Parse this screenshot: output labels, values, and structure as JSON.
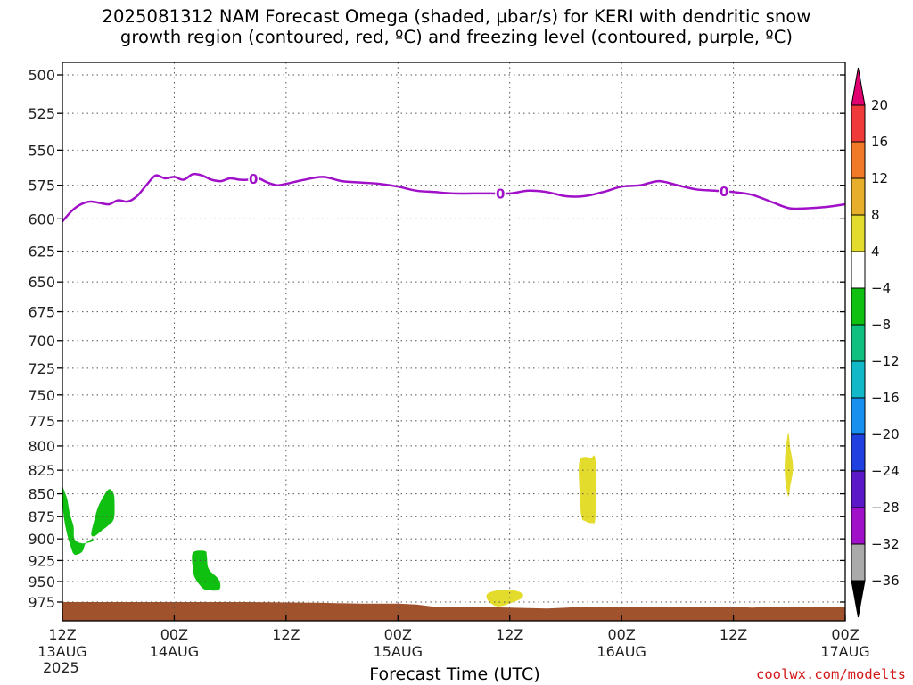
{
  "title": {
    "line1": "2025081312 NAM Forecast Omega (shaded, μbar/s) for KERI with dendritic snow",
    "line2": "growth region (contoured, red, ºC) and freezing level (contoured, purple, ºC)"
  },
  "credit": "coolwx.com/modelts",
  "chart_data": {
    "type": "time-height",
    "xlabel": "Forecast Time (UTC)",
    "x_ticks": [
      {
        "hour": 0,
        "label": "12Z",
        "sub": [
          "13AUG",
          "2025"
        ]
      },
      {
        "hour": 12,
        "label": "00Z",
        "sub": [
          "14AUG"
        ]
      },
      {
        "hour": 24,
        "label": "12Z",
        "sub": []
      },
      {
        "hour": 36,
        "label": "00Z",
        "sub": [
          "15AUG"
        ]
      },
      {
        "hour": 48,
        "label": "12Z",
        "sub": []
      },
      {
        "hour": 60,
        "label": "00Z",
        "sub": [
          "16AUG"
        ]
      },
      {
        "hour": 72,
        "label": "12Z",
        "sub": []
      },
      {
        "hour": 84,
        "label": "00Z",
        "sub": [
          "17AUG"
        ]
      }
    ],
    "xlim_hours": [
      0,
      84
    ],
    "y_ticks": [
      "500",
      "525",
      "550",
      "575",
      "600",
      "625",
      "650",
      "675",
      "700",
      "725",
      "750",
      "775",
      "800",
      "825",
      "850",
      "875",
      "900",
      "925",
      "950",
      "975"
    ],
    "ylim_mb": [
      1000,
      490
    ],
    "y_scale": "log-pressure",
    "grid": true,
    "freezing_level": {
      "label": "0",
      "color": "#a010c8",
      "hour": [
        0,
        1,
        2,
        3,
        4,
        5,
        6,
        7,
        8,
        9,
        10,
        11,
        12,
        13,
        14,
        15,
        16,
        17,
        18,
        19,
        20,
        21,
        22,
        23,
        24,
        26,
        28,
        30,
        32,
        34,
        36,
        38,
        40,
        42,
        44,
        46,
        48,
        50,
        52,
        54,
        56,
        58,
        60,
        62,
        64,
        66,
        68,
        70,
        72,
        74,
        76,
        78,
        80,
        82,
        84
      ],
      "pressure": [
        602,
        594,
        589,
        587,
        588,
        589,
        586,
        587,
        583,
        575,
        568,
        570,
        569,
        571,
        567,
        568,
        571,
        572,
        570,
        571,
        571,
        570,
        573,
        575,
        574,
        571,
        569,
        572,
        573,
        574,
        576,
        579,
        580,
        581,
        581,
        581,
        581,
        579,
        580,
        583,
        583,
        580,
        576,
        575,
        572,
        575,
        578,
        579,
        580,
        582,
        587,
        592,
        592,
        591,
        589
      ]
    },
    "freezing_level_labels_hour": [
      20.5,
      47,
      71
    ],
    "omega_shaded": [
      {
        "value_range": "-8 to -4",
        "color": "#10c010",
        "hour": [
          0,
          0,
          0.5,
          0.8,
          1.2,
          1.3,
          2.1,
          3.2,
          3.2,
          2.5,
          2.1,
          1.3,
          0.9,
          0.4,
          0.1,
          0
        ],
        "pressure": [
          822,
          840,
          855,
          872,
          886,
          900,
          905,
          903,
          900,
          905,
          915,
          918,
          909,
          890,
          870,
          850
        ]
      },
      {
        "value_range": "-8 to -4",
        "color": "#10c010",
        "hour": [
          3.1,
          3.4,
          3.8,
          4.4,
          5.0,
          5.5,
          5.6,
          5.5,
          4.8,
          4.3,
          3.6,
          3.2
        ],
        "pressure": [
          893,
          880,
          865,
          853,
          845,
          850,
          862,
          878,
          886,
          890,
          896,
          897
        ]
      },
      {
        "value_range": "-8 to -4",
        "color": "#10c010",
        "hour": [
          14.0,
          15.3,
          15.5,
          15.7,
          16.8,
          16.8,
          15.4,
          14.8,
          14.2,
          14.0
        ],
        "pressure": [
          916,
          914,
          920,
          935,
          948,
          960,
          960,
          955,
          945,
          935
        ]
      },
      {
        "value_range": "4 to 8",
        "color": "#e4dc2c",
        "hour": [
          55.5,
          56.7,
          57.2,
          57.2,
          56.8,
          56.1,
          55.7,
          55.5
        ],
        "pressure": [
          815,
          812,
          815,
          875,
          882,
          880,
          875,
          850
        ]
      },
      {
        "value_range": "4 to 8",
        "color": "#e4dc2c",
        "hour": [
          45.6,
          46.5,
          48.0,
          49.3,
          49.3,
          48.4,
          47.1,
          46.3,
          45.6
        ],
        "pressure": [
          965,
          961,
          960,
          964,
          970,
          975,
          980,
          979,
          972
        ]
      },
      {
        "value_range": "4 to 8",
        "color": "#e4dc2c",
        "hour": [
          77.9,
          78.1,
          78.4,
          78.1,
          77.9,
          77.6,
          77.5,
          77.6
        ],
        "pressure": [
          787,
          802,
          822,
          842,
          853,
          838,
          822,
          805
        ]
      }
    ],
    "terrain": {
      "color": "#a0522d",
      "hour": [
        0,
        12,
        20,
        28,
        32,
        36,
        38,
        40,
        44,
        48,
        52,
        56,
        60,
        64,
        68,
        72,
        74,
        76,
        80,
        84
      ],
      "pressure": [
        975,
        975,
        975,
        976,
        977,
        977,
        978,
        981,
        981,
        982,
        983,
        981,
        981,
        981,
        981,
        981,
        982,
        981,
        981,
        981
      ]
    },
    "colorbar": {
      "levels": [
        20,
        16,
        12,
        8,
        4,
        -4,
        -8,
        -12,
        -16,
        -20,
        -24,
        -28,
        -32,
        -36
      ],
      "colors": [
        "#e00070",
        "#f03a3a",
        "#f07a28",
        "#e6ae2a",
        "#e4dc2c",
        "#ffffff",
        "#10c010",
        "#10c080",
        "#10b8c8",
        "#1890f0",
        "#2040e0",
        "#5a18c8",
        "#a010c8",
        "#aaaaaa",
        "#000000"
      ]
    }
  }
}
